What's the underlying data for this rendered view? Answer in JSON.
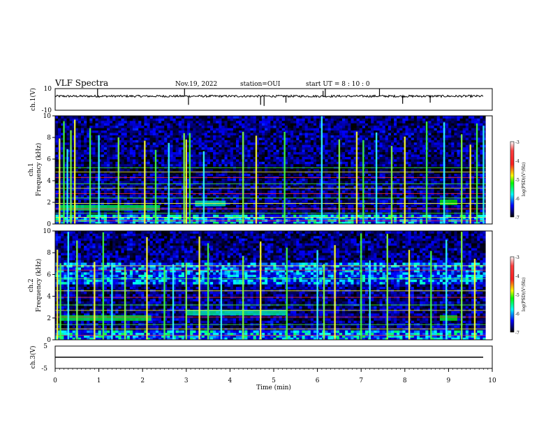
{
  "header": {
    "title": "VLF Spectra",
    "date": "Nov.19, 2022",
    "station": "station=OUI",
    "start": "start  UT =  8 : 10 : 0"
  },
  "chart_data": [
    {
      "type": "line",
      "name": "ch1-waveform",
      "ylabel": "ch.1(V)",
      "ylim": [
        -10,
        10
      ],
      "yticks": [
        "10",
        "-10"
      ],
      "xlim": [
        0,
        10
      ],
      "baseline": 3,
      "spikes": [
        {
          "t": 0.97,
          "v": 10
        },
        {
          "t": 2.96,
          "v": 10
        },
        {
          "t": 3.05,
          "v": -5
        },
        {
          "t": 4.7,
          "v": -5
        },
        {
          "t": 4.78,
          "v": -6
        },
        {
          "t": 5.28,
          "v": -3
        },
        {
          "t": 6.13,
          "v": 8
        },
        {
          "t": 6.18,
          "v": 10
        },
        {
          "t": 7.42,
          "v": 10
        },
        {
          "t": 7.95,
          "v": -4
        },
        {
          "t": 8.58,
          "v": -3
        }
      ]
    },
    {
      "type": "heatmap",
      "name": "ch1-spectrogram",
      "ylabel": "ch.1\nFrequency (kHz)",
      "yticks": [
        "0",
        "2",
        "4",
        "6",
        "8",
        "10"
      ],
      "ylim": [
        0,
        10
      ],
      "xlim": [
        0,
        9.85
      ],
      "colorbar": {
        "label": "log(PSD)(V²/Hz)",
        "ticks": [
          "-3",
          "-4",
          "-5",
          "-6",
          "-7"
        ],
        "range": [
          -7,
          -3
        ]
      },
      "horizontal_lines_khz": [
        0.3,
        0.6,
        1.0,
        1.4,
        1.9,
        2.4,
        2.8,
        3.3,
        3.7,
        4.3,
        4.8,
        5.2
      ],
      "bursts_min": [
        0.1,
        0.2,
        0.28,
        0.36,
        0.45,
        0.8,
        1.0,
        1.45,
        2.05,
        2.3,
        2.6,
        2.95,
        3.0,
        3.08,
        3.4,
        4.3,
        4.6,
        5.25,
        6.1,
        6.5,
        6.9,
        7.05,
        7.35,
        7.7,
        8.0,
        8.5,
        8.9,
        9.3,
        9.5,
        9.65,
        9.8
      ],
      "bands": [
        {
          "f_khz": 1.5,
          "t_start": 0.1,
          "t_end": 2.4,
          "level": -4.8
        },
        {
          "f_khz": 1.9,
          "t_start": 3.2,
          "t_end": 3.9,
          "level": -5.0
        },
        {
          "f_khz": 2.0,
          "t_start": 8.8,
          "t_end": 9.2,
          "level": -4.6
        }
      ]
    },
    {
      "type": "heatmap",
      "name": "ch2-spectrogram",
      "ylabel": "ch.2\nFrequency (kHz)",
      "yticks": [
        "0",
        "2",
        "4",
        "6",
        "8",
        "10"
      ],
      "ylim": [
        0,
        10
      ],
      "xlim": [
        0,
        9.85
      ],
      "colorbar": {
        "label": "log(PSD)(V²/Hz)",
        "ticks": [
          "-3",
          "-4",
          "-5",
          "-6",
          "-7"
        ],
        "range": [
          -7,
          -3
        ]
      },
      "horizontal_lines_khz": [
        0.4,
        1.0,
        1.4,
        2.1,
        2.7,
        3.2,
        3.9,
        4.5,
        5.6,
        6.4,
        6.8
      ],
      "bursts_min": [
        0.05,
        0.12,
        0.3,
        0.5,
        0.9,
        1.1,
        1.3,
        1.6,
        2.1,
        2.5,
        2.7,
        3.0,
        3.3,
        3.5,
        3.8,
        4.3,
        4.7,
        5.3,
        6.0,
        6.15,
        6.4,
        7.0,
        7.2,
        7.6,
        8.1,
        8.6,
        8.95,
        9.3,
        9.6
      ],
      "bands": [
        {
          "f_khz": 2.0,
          "t_start": 0.1,
          "t_end": 2.2,
          "level": -4.7
        },
        {
          "f_khz": 2.5,
          "t_start": 3.0,
          "t_end": 5.3,
          "level": -5.0
        },
        {
          "f_khz": 2.0,
          "t_start": 8.8,
          "t_end": 9.2,
          "level": -4.6
        }
      ]
    },
    {
      "type": "line",
      "name": "ch3-waveform",
      "ylabel": "ch.3(V)",
      "ylim": [
        -5,
        5
      ],
      "yticks": [
        "5",
        "-5"
      ],
      "xlim": [
        0,
        10
      ],
      "xlabel": "Time (min)",
      "xticks": [
        "0",
        "1",
        "2",
        "3",
        "4",
        "5",
        "6",
        "7",
        "8",
        "9",
        "10"
      ],
      "constant_value": 0
    }
  ]
}
